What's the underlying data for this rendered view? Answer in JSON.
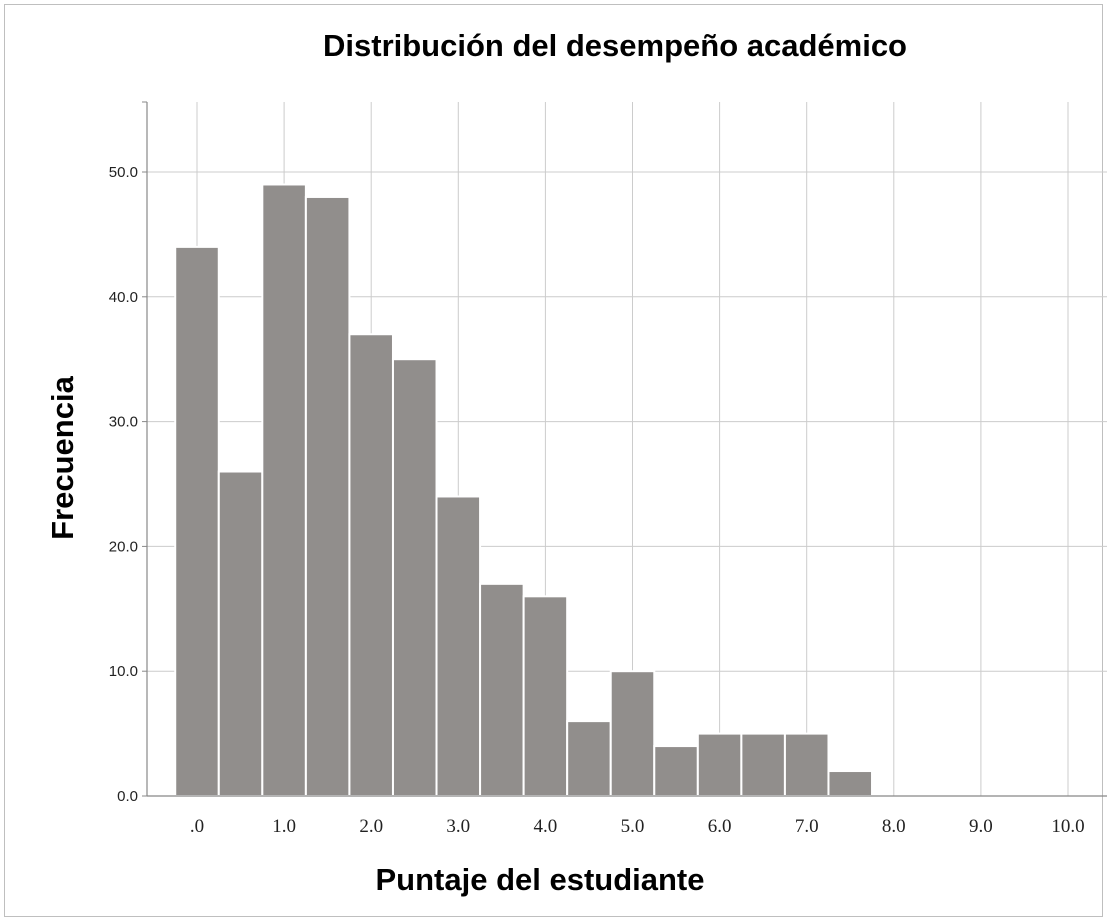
{
  "chart_data": {
    "type": "bar",
    "title": "Distribución del desempeño académico",
    "xlabel": "Puntaje del estudiante",
    "ylabel": "Frecuencia",
    "bin_width": 0.5,
    "x": [
      0.0,
      0.5,
      1.0,
      1.5,
      2.0,
      2.5,
      3.0,
      3.5,
      4.0,
      4.5,
      5.0,
      5.5,
      6.0,
      6.5,
      7.0,
      7.5,
      8.0
    ],
    "values": [
      44,
      26,
      49,
      48,
      37,
      35,
      24,
      17,
      16,
      6,
      10,
      4,
      5,
      5,
      5,
      2,
      0
    ],
    "xlim": [
      -0.25,
      10.25
    ],
    "ylim": [
      0,
      55
    ],
    "x_ticks": [
      0,
      1,
      2,
      3,
      4,
      5,
      6,
      7,
      8,
      9,
      10
    ],
    "x_tick_labels": [
      ".0",
      "1.0",
      "2.0",
      "3.0",
      "4.0",
      "5.0",
      "6.0",
      "7.0",
      "8.0",
      "9.0",
      "10.0"
    ],
    "y_ticks": [
      0,
      10,
      20,
      30,
      40,
      50
    ],
    "y_tick_labels": [
      "0.0",
      "10.0",
      "20.0",
      "30.0",
      "40.0",
      "50.0"
    ],
    "grid": true,
    "colors": {
      "bar": "#918e8c",
      "bar_edge": "#ffffff",
      "grid": "#cccccc",
      "axis": "#888888"
    }
  }
}
